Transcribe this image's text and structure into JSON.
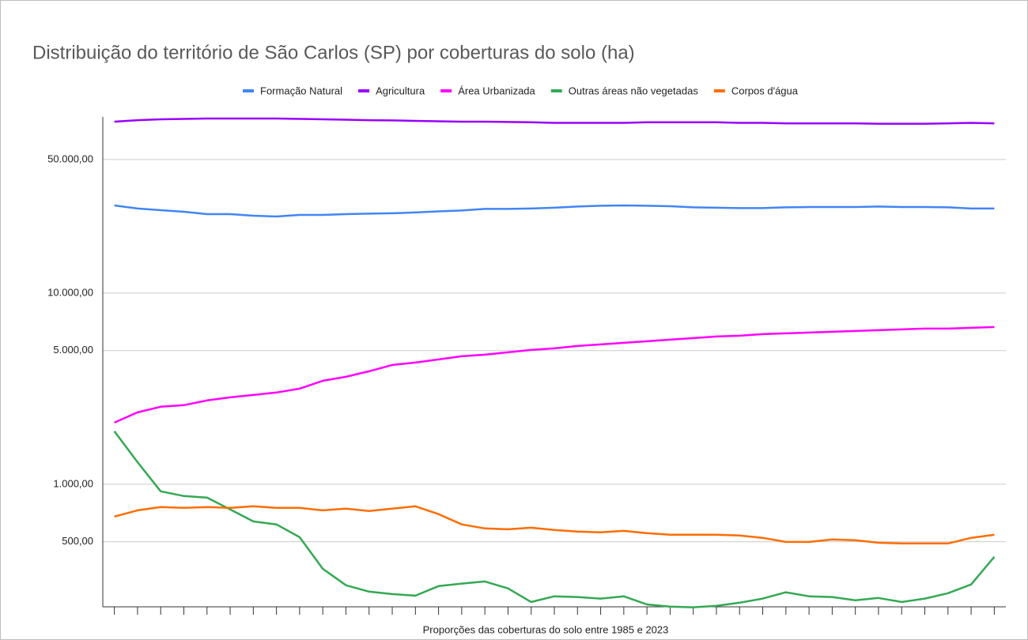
{
  "chart_data": {
    "type": "line",
    "title": "Distribuição do território de São Carlos (SP) por coberturas do solo (ha)",
    "x_label": "Proporções das coberturas do solo entre 1985 e 2023",
    "log_scale": true,
    "grid": true,
    "legend": "top",
    "categories": [
      null,
      null,
      null,
      null,
      null,
      null,
      null,
      null,
      null,
      null,
      null,
      null,
      null,
      null,
      null,
      null,
      null,
      null,
      null,
      null,
      null,
      null,
      null,
      null,
      null,
      null,
      null,
      null,
      null,
      null,
      null,
      null,
      null,
      null,
      null,
      null,
      null,
      null,
      null
    ],
    "ylim": [
      224,
      83460
    ],
    "yticks": [
      {
        "value": 500,
        "label": "500,00"
      },
      {
        "value": 1000,
        "label": "1.000,00"
      },
      {
        "value": 5000,
        "label": "5.000,00"
      },
      {
        "value": 10000,
        "label": "10.000,00"
      },
      {
        "value": 50000,
        "label": "50.000,00"
      }
    ],
    "series": [
      {
        "name": "Formação Natural",
        "color": "#4285f4",
        "values": [
          28750,
          27700,
          27150,
          26640,
          25890,
          25890,
          25400,
          25160,
          25650,
          25650,
          25890,
          26020,
          26150,
          26400,
          26770,
          27030,
          27550,
          27550,
          27700,
          27950,
          28350,
          28620,
          28750,
          28620,
          28480,
          28080,
          27950,
          27820,
          27820,
          28080,
          28210,
          28210,
          28210,
          28350,
          28210,
          28210,
          28080,
          27700,
          27700
        ]
      },
      {
        "name": "Agricultura",
        "color": "#9900ff",
        "values": [
          78800,
          80300,
          81100,
          81500,
          81900,
          81900,
          81900,
          81900,
          81500,
          81100,
          80700,
          80300,
          80000,
          79600,
          79200,
          78800,
          78800,
          78500,
          78200,
          77700,
          77700,
          77700,
          77700,
          78200,
          78200,
          78200,
          78200,
          77700,
          77700,
          77300,
          77300,
          77300,
          77300,
          76900,
          76900,
          76900,
          77300,
          77700,
          77300
        ]
      },
      {
        "name": "Área Urbanizada",
        "color": "#ff00ff",
        "values": [
          2100,
          2377,
          2541,
          2590,
          2742,
          2848,
          2930,
          3016,
          3162,
          3478,
          3648,
          3899,
          4207,
          4328,
          4497,
          4671,
          4761,
          4898,
          5041,
          5137,
          5286,
          5388,
          5492,
          5597,
          5705,
          5815,
          5926,
          5983,
          6097,
          6156,
          6215,
          6275,
          6335,
          6396,
          6457,
          6519,
          6519,
          6580,
          6640
        ]
      },
      {
        "name": "Outras áreas não vegetadas",
        "color": "#34a853",
        "values": [
          1892,
          1305,
          918,
          867,
          851,
          738,
          639,
          616,
          528,
          361,
          296,
          274,
          266,
          261,
          293,
          302,
          310,
          285,
          242,
          259,
          257,
          252,
          259,
          235,
          229,
          227,
          231,
          240,
          252,
          272,
          259,
          257,
          247,
          254,
          242,
          252,
          269,
          299,
          417
        ]
      },
      {
        "name": "Corpos d'água",
        "color": "#ff6d01",
        "values": [
          677,
          730,
          759,
          752,
          759,
          752,
          766,
          752,
          752,
          730,
          745,
          724,
          745,
          766,
          697,
          616,
          587,
          581,
          592,
          576,
          565,
          560,
          570,
          555,
          544,
          544,
          544,
          539,
          524,
          499,
          499,
          514,
          509,
          494,
          490,
          490,
          490,
          524,
          544
        ]
      }
    ]
  }
}
